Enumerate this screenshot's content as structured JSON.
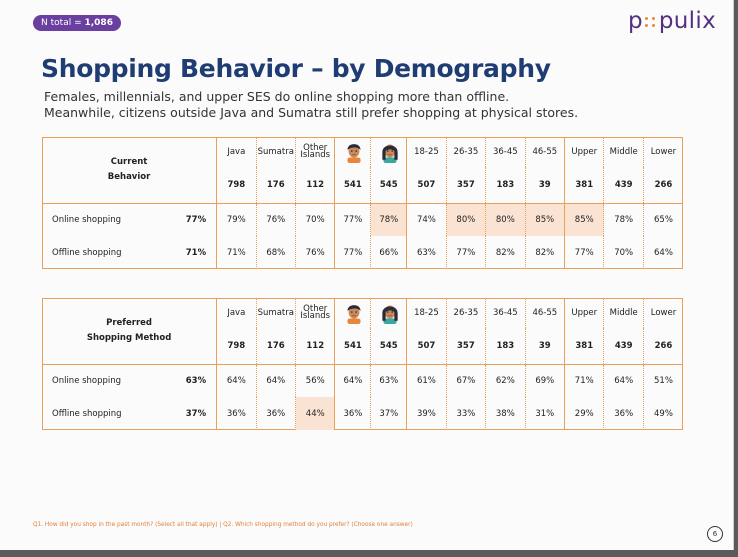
{
  "badge": {
    "prefix": "N total = ",
    "value": "1,086"
  },
  "logo": {
    "left": "p",
    "right": "pulix"
  },
  "title": "Shopping Behavior – by Demography",
  "subtitle_line1": "Females, millennials, and upper SES do online shopping more than offline.",
  "subtitle_line2": "Meanwhile, citizens outside Java and Sumatra still prefer shopping at physical stores.",
  "columns": {
    "region": [
      "Java",
      "Sumatra",
      "Other Islands"
    ],
    "age": [
      "18-25",
      "26-35",
      "36-45",
      "46-55"
    ],
    "ses": [
      "Upper",
      "Middle",
      "Lower"
    ],
    "gender_icons": [
      "male-face-icon",
      "female-face-icon"
    ]
  },
  "counts": [
    "798",
    "176",
    "112",
    "541",
    "545",
    "507",
    "357",
    "183",
    "39",
    "381",
    "439",
    "266"
  ],
  "table1": {
    "label_line1": "Current",
    "label_line2": "Behavior",
    "rows": [
      {
        "label": "Online shopping",
        "total": "77%",
        "values": [
          "79%",
          "76%",
          "70%",
          "77%",
          "78%",
          "74%",
          "80%",
          "80%",
          "85%",
          "85%",
          "78%",
          "65%"
        ],
        "highlight": [
          4,
          6,
          7,
          8,
          9
        ]
      },
      {
        "label": "Offline shopping",
        "total": "71%",
        "values": [
          "71%",
          "68%",
          "76%",
          "77%",
          "66%",
          "63%",
          "77%",
          "82%",
          "82%",
          "77%",
          "70%",
          "64%"
        ],
        "highlight": []
      }
    ]
  },
  "table2": {
    "label_line1": "Preferred",
    "label_line2": "Shopping Method",
    "rows": [
      {
        "label": "Online shopping",
        "total": "63%",
        "values": [
          "64%",
          "64%",
          "56%",
          "64%",
          "63%",
          "61%",
          "67%",
          "62%",
          "69%",
          "71%",
          "64%",
          "51%"
        ],
        "highlight": []
      },
      {
        "label": "Offline shopping",
        "total": "37%",
        "values": [
          "36%",
          "36%",
          "44%",
          "36%",
          "37%",
          "39%",
          "33%",
          "38%",
          "31%",
          "29%",
          "36%",
          "49%"
        ],
        "highlight": [
          2
        ]
      }
    ]
  },
  "footnote": "Q1. How did you shop in the past month? (Select all that apply) | Q2. Which shopping method do you prefer? (Choose one answer)",
  "page_number": "6",
  "colors": {
    "accent": "#e2813a",
    "title": "#1f3d73",
    "badge": "#6a3fa0",
    "highlight": "#fbe3d4"
  }
}
